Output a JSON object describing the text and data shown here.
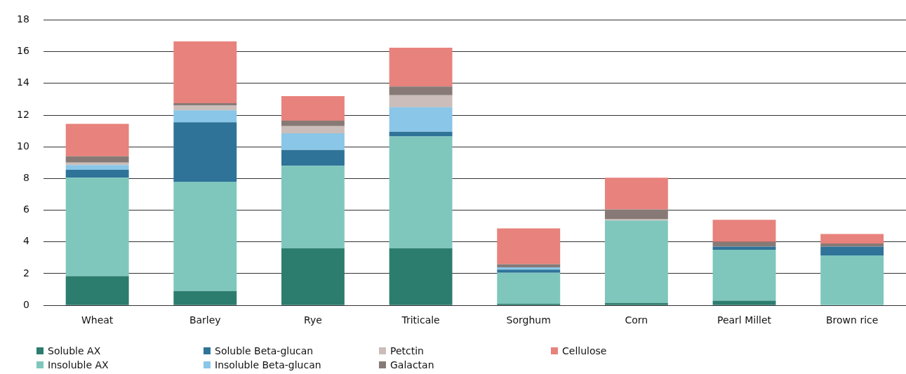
{
  "chart_data": {
    "type": "bar",
    "stacked": true,
    "categories": [
      "Wheat",
      "Barley",
      "Rye",
      "Triticale",
      "Sorghum",
      "Corn",
      "Pearl Millet",
      "Brown rice"
    ],
    "series": [
      {
        "name": "Soluble AX",
        "color": "#2c7d6e",
        "values": [
          1.85,
          0.9,
          3.6,
          3.6,
          0.1,
          0.15,
          0.3,
          0
        ]
      },
      {
        "name": "Insoluble AX",
        "color": "#7fc7bd",
        "values": [
          6.2,
          6.9,
          5.2,
          7.05,
          1.95,
          5.2,
          3.2,
          3.15
        ]
      },
      {
        "name": "Soluble Beta-glucan",
        "color": "#2f7398",
        "values": [
          0.5,
          3.75,
          1.0,
          0.3,
          0.2,
          0,
          0.2,
          0.55
        ]
      },
      {
        "name": "Insoluble Beta-glucan",
        "color": "#89c6e7",
        "values": [
          0.3,
          0.75,
          1.05,
          1.55,
          0.15,
          0,
          0,
          0
        ]
      },
      {
        "name": "Petctin",
        "color": "#cbbdb9",
        "values": [
          0.15,
          0.3,
          0.45,
          0.75,
          0,
          0.1,
          0,
          0
        ]
      },
      {
        "name": "Galactan",
        "color": "#877a76",
        "values": [
          0.4,
          0.15,
          0.35,
          0.55,
          0.2,
          0.6,
          0.3,
          0.2
        ]
      },
      {
        "name": "Cellulose",
        "color": "#e8827c",
        "values": [
          2.05,
          3.9,
          1.55,
          2.45,
          2.25,
          2.0,
          1.4,
          0.6
        ]
      }
    ],
    "ylim": [
      0,
      18
    ],
    "yticks": [
      0,
      2,
      4,
      6,
      8,
      10,
      12,
      14,
      16,
      18
    ],
    "grid": "y",
    "legend": "bottom"
  }
}
